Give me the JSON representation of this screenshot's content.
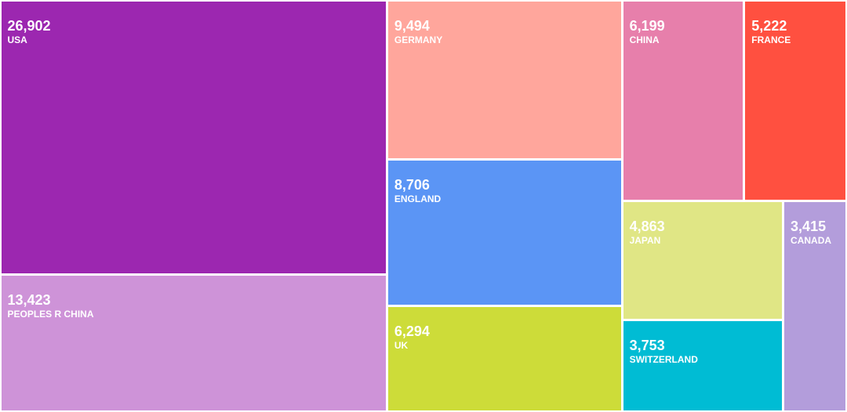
{
  "chart_data": {
    "type": "treemap",
    "title": "",
    "items": [
      {
        "label": "USA",
        "value_label": "26,902",
        "value": 26902,
        "color": "#9C27B0"
      },
      {
        "label": "PEOPLES R CHINA",
        "value_label": "13,423",
        "value": 13423,
        "color": "#CE93D8"
      },
      {
        "label": "GERMANY",
        "value_label": "9,494",
        "value": 9494,
        "color": "#FFA69C"
      },
      {
        "label": "ENGLAND",
        "value_label": "8,706",
        "value": 8706,
        "color": "#5B95F5"
      },
      {
        "label": "UK",
        "value_label": "6,294",
        "value": 6294,
        "color": "#CDDC39"
      },
      {
        "label": "CHINA",
        "value_label": "6,199",
        "value": 6199,
        "color": "#E77FAB"
      },
      {
        "label": "FRANCE",
        "value_label": "5,222",
        "value": 5222,
        "color": "#FF5040"
      },
      {
        "label": "JAPAN",
        "value_label": "4,863",
        "value": 4863,
        "color": "#E0E685"
      },
      {
        "label": "SWITZERLAND",
        "value_label": "3,753",
        "value": 3753,
        "color": "#00BCD4"
      },
      {
        "label": "CANADA",
        "value_label": "3,415",
        "value": 3415,
        "color": "#B39DDB"
      }
    ]
  }
}
